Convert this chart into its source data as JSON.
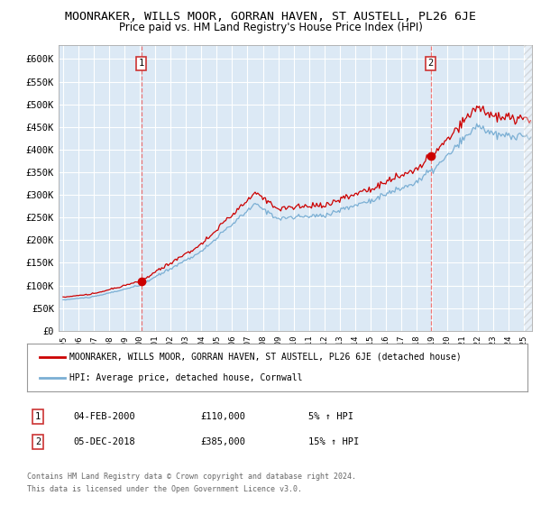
{
  "title": "MOONRAKER, WILLS MOOR, GORRAN HAVEN, ST AUSTELL, PL26 6JE",
  "subtitle": "Price paid vs. HM Land Registry's House Price Index (HPI)",
  "title_fontsize": 9.5,
  "subtitle_fontsize": 8.5,
  "bg_color": "#dce9f5",
  "red_line_color": "#cc0000",
  "blue_line_color": "#7bafd4",
  "grid_color": "#ffffff",
  "dashed_line_color": "#ee7777",
  "marker_color": "#cc0000",
  "purchase1_date_x": 2000.09,
  "purchase1_price": 110000,
  "purchase2_date_x": 2018.92,
  "purchase2_price": 385000,
  "ylim": [
    0,
    630000
  ],
  "yticks": [
    0,
    50000,
    100000,
    150000,
    200000,
    250000,
    300000,
    350000,
    400000,
    450000,
    500000,
    550000,
    600000
  ],
  "legend1_label": "MOONRAKER, WILLS MOOR, GORRAN HAVEN, ST AUSTELL, PL26 6JE (detached house)",
  "legend2_label": "HPI: Average price, detached house, Cornwall",
  "footer_line1": "Contains HM Land Registry data © Crown copyright and database right 2024.",
  "footer_line2": "This data is licensed under the Open Government Licence v3.0.",
  "note1_date": "04-FEB-2000",
  "note1_price": "£110,000",
  "note1_hpi": "5% ↑ HPI",
  "note2_date": "05-DEC-2018",
  "note2_price": "£385,000",
  "note2_hpi": "15% ↑ HPI",
  "xlim_start": 1994.7,
  "xlim_end": 2025.5,
  "hatch_start": 2025.0
}
